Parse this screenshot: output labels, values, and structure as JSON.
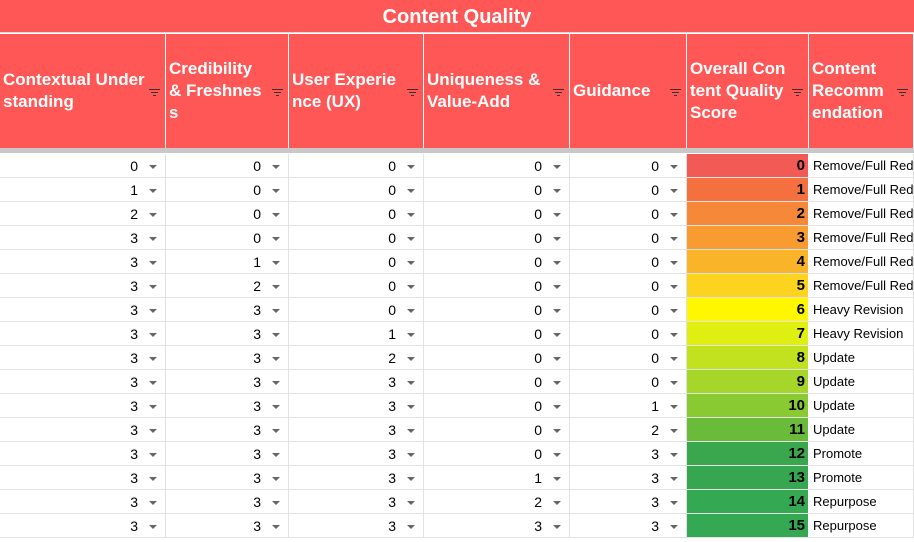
{
  "title": "Content Quality",
  "table": {
    "columns": [
      "Contextual Understanding",
      "Credibility & Freshness",
      "User Experience (UX)",
      "Uniqueness & Value-Add",
      "Guidance",
      "Overall Content Quality Score",
      "Content Recomm endation"
    ],
    "rows": [
      [
        0,
        0,
        0,
        0,
        0,
        0,
        "Remove/Full Red"
      ],
      [
        1,
        0,
        0,
        0,
        0,
        1,
        "Remove/Full Red"
      ],
      [
        2,
        0,
        0,
        0,
        0,
        2,
        "Remove/Full Red"
      ],
      [
        3,
        0,
        0,
        0,
        0,
        3,
        "Remove/Full Red"
      ],
      [
        3,
        1,
        0,
        0,
        0,
        4,
        "Remove/Full Red"
      ],
      [
        3,
        2,
        0,
        0,
        0,
        5,
        "Remove/Full Red"
      ],
      [
        3,
        3,
        0,
        0,
        0,
        6,
        "Heavy Revision"
      ],
      [
        3,
        3,
        1,
        0,
        0,
        7,
        "Heavy Revision"
      ],
      [
        3,
        3,
        2,
        0,
        0,
        8,
        "Update"
      ],
      [
        3,
        3,
        3,
        0,
        0,
        9,
        "Update"
      ],
      [
        3,
        3,
        3,
        0,
        1,
        10,
        "Update"
      ],
      [
        3,
        3,
        3,
        0,
        2,
        11,
        "Update"
      ],
      [
        3,
        3,
        3,
        0,
        3,
        12,
        "Promote"
      ],
      [
        3,
        3,
        3,
        1,
        3,
        13,
        "Promote"
      ],
      [
        3,
        3,
        3,
        2,
        3,
        14,
        "Repurpose"
      ],
      [
        3,
        3,
        3,
        3,
        3,
        15,
        "Repurpose"
      ]
    ],
    "score_colors": [
      "#f25a55",
      "#f4713f",
      "#f6883a",
      "#f89c31",
      "#fab42a",
      "#fcd31f",
      "#fff700",
      "#e0ef12",
      "#c2e21f",
      "#a6d62a",
      "#89c932",
      "#6bbb3b",
      "#3aa64d",
      "#36a750",
      "#34a853",
      "#34a853"
    ]
  }
}
